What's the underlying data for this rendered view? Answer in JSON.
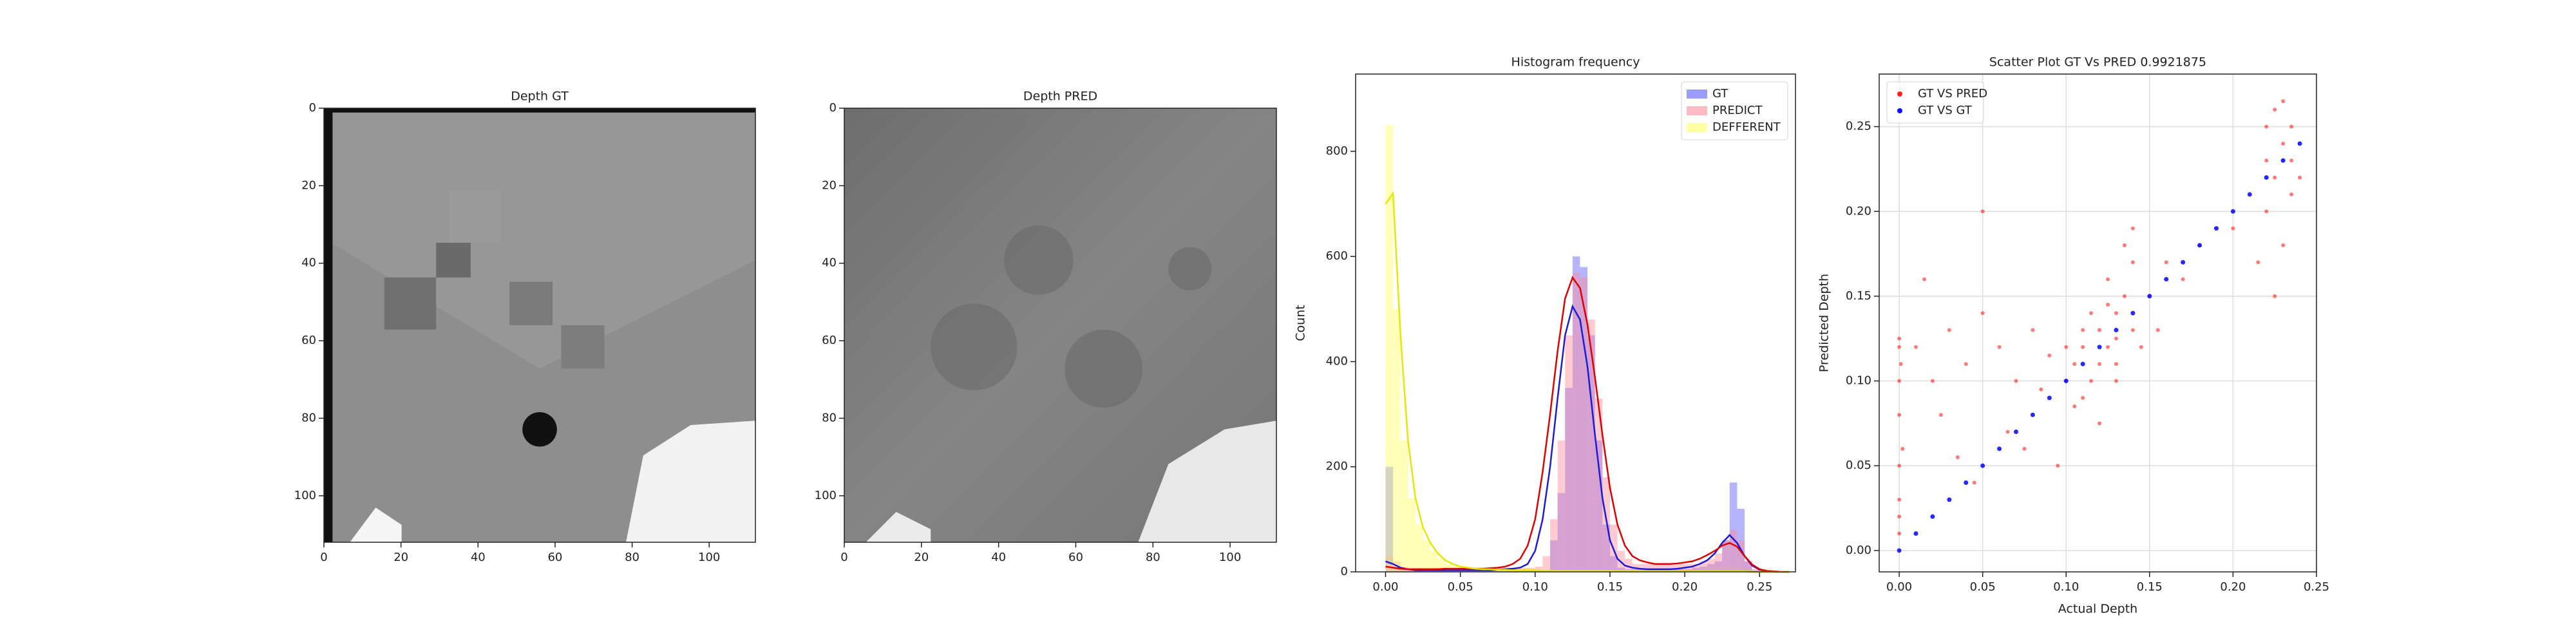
{
  "chart_data": [
    {
      "type": "image",
      "title": "Depth GT",
      "xlim": [
        0,
        112
      ],
      "ylim": [
        112,
        0
      ],
      "xticks": [
        0,
        20,
        40,
        60,
        80,
        100
      ],
      "yticks": [
        0,
        20,
        40,
        60,
        80,
        100
      ]
    },
    {
      "type": "image",
      "title": "Depth PRED",
      "xlim": [
        0,
        112
      ],
      "ylim": [
        112,
        0
      ],
      "xticks": [
        0,
        20,
        40,
        60,
        80,
        100
      ],
      "yticks": [
        0,
        20,
        40,
        60,
        80,
        100
      ]
    },
    {
      "type": "histogram",
      "title": "Histogram frequency",
      "y_label": "Count",
      "legend": "upper right",
      "xlim": [
        -0.02,
        0.274
      ],
      "ylim": [
        0,
        947
      ],
      "xticks": [
        {
          "value": 0,
          "label": "0.00"
        },
        {
          "value": 0.05,
          "label": "0.05"
        },
        {
          "value": 0.1,
          "label": "0.10"
        },
        {
          "value": 0.15,
          "label": "0.15"
        },
        {
          "value": 0.2,
          "label": "0.20"
        },
        {
          "value": 0.25,
          "label": "0.25"
        }
      ],
      "yticks": [
        0,
        200,
        400,
        600,
        800
      ],
      "bins": [
        0,
        0.005,
        0.01,
        0.015,
        0.02,
        0.025,
        0.03,
        0.035,
        0.04,
        0.045,
        0.05,
        0.055,
        0.06,
        0.065,
        0.07,
        0.075,
        0.08,
        0.085,
        0.09,
        0.095,
        0.1,
        0.105,
        0.11,
        0.115,
        0.12,
        0.125,
        0.13,
        0.135,
        0.14,
        0.145,
        0.15,
        0.155,
        0.16,
        0.165,
        0.17,
        0.175,
        0.18,
        0.185,
        0.19,
        0.195,
        0.2,
        0.205,
        0.21,
        0.215,
        0.22,
        0.225,
        0.23,
        0.235,
        0.24,
        0.245,
        0.25,
        0.255,
        0.26,
        0.265,
        0.27
      ],
      "series": [
        {
          "name": "GT",
          "color": "#5a5aff",
          "kde_color": "#1c1cd6",
          "values": [
            200,
            10,
            3,
            2,
            2,
            2,
            2,
            2,
            2,
            2,
            2,
            2,
            2,
            2,
            2,
            2,
            2,
            2,
            2,
            2,
            2,
            3,
            60,
            150,
            350,
            600,
            580,
            450,
            250,
            90,
            30,
            8,
            5,
            5,
            5,
            5,
            5,
            5,
            5,
            5,
            5,
            8,
            10,
            15,
            20,
            60,
            170,
            120,
            20,
            3,
            0,
            0,
            0,
            0
          ],
          "kde": [
            20,
            15,
            8,
            5,
            3,
            3,
            3,
            3,
            3,
            3,
            3,
            3,
            3,
            3,
            3,
            4,
            5,
            6,
            8,
            15,
            40,
            100,
            200,
            330,
            450,
            505,
            480,
            390,
            260,
            140,
            60,
            25,
            12,
            8,
            6,
            5,
            5,
            5,
            5,
            6,
            8,
            10,
            15,
            22,
            35,
            55,
            70,
            55,
            30,
            12,
            4,
            1,
            0,
            0,
            0
          ]
        },
        {
          "name": "PREDICT",
          "color": "#ff8c9c",
          "kde_color": "#e00000",
          "values": [
            30,
            20,
            10,
            8,
            8,
            8,
            8,
            8,
            8,
            8,
            8,
            8,
            8,
            8,
            8,
            8,
            8,
            8,
            8,
            8,
            10,
            30,
            100,
            250,
            450,
            570,
            560,
            480,
            330,
            180,
            90,
            40,
            25,
            15,
            15,
            15,
            15,
            15,
            15,
            15,
            15,
            15,
            20,
            25,
            35,
            60,
            80,
            60,
            20,
            5,
            0,
            0,
            0,
            0
          ],
          "kde": [
            10,
            8,
            6,
            5,
            5,
            5,
            5,
            5,
            6,
            6,
            6,
            6,
            6,
            6,
            7,
            8,
            10,
            15,
            25,
            50,
            100,
            190,
            300,
            420,
            520,
            560,
            540,
            470,
            370,
            260,
            160,
            90,
            50,
            30,
            22,
            18,
            15,
            15,
            15,
            16,
            18,
            20,
            25,
            32,
            40,
            50,
            55,
            48,
            30,
            14,
            5,
            2,
            1,
            0,
            0
          ]
        },
        {
          "name": "DEFFERENT",
          "color": "#ffff66",
          "kde_color": "#e6e600",
          "values": [
            850,
            500,
            250,
            140,
            90,
            60,
            40,
            25,
            15,
            10,
            5,
            5,
            5,
            5,
            5,
            4,
            4,
            3,
            3,
            3,
            3,
            2,
            2,
            2,
            2,
            2,
            2,
            2,
            2,
            2,
            2,
            2,
            2,
            2,
            1,
            1,
            1,
            1,
            1,
            1,
            1,
            1,
            1,
            1,
            1,
            1,
            1,
            1,
            0,
            0,
            0,
            0,
            0,
            0
          ],
          "kde": [
            700,
            720,
            450,
            250,
            140,
            85,
            55,
            35,
            22,
            15,
            10,
            8,
            6,
            5,
            5,
            4,
            4,
            3,
            3,
            3,
            3,
            2,
            2,
            2,
            2,
            2,
            2,
            2,
            2,
            2,
            2,
            2,
            2,
            2,
            2,
            1,
            1,
            1,
            1,
            1,
            1,
            1,
            1,
            1,
            1,
            1,
            1,
            1,
            1,
            0,
            0,
            0,
            0,
            0,
            0
          ]
        }
      ]
    },
    {
      "type": "scatter",
      "title": "Scatter Plot GT Vs PRED 0.9921875",
      "x_label": "Actual Depth",
      "y_label": "Predicted Depth",
      "legend": "upper left",
      "grid": true,
      "xlim": [
        -0.012,
        0.25
      ],
      "ylim": [
        -0.0126,
        0.281
      ],
      "xticks": [
        {
          "value": 0,
          "label": "0.00"
        },
        {
          "value": 0.05,
          "label": "0.05"
        },
        {
          "value": 0.1,
          "label": "0.10"
        },
        {
          "value": 0.15,
          "label": "0.15"
        },
        {
          "value": 0.2,
          "label": "0.20"
        },
        {
          "value": 0.25,
          "label": "0.25"
        }
      ],
      "yticks": [
        {
          "value": 0,
          "label": "0.00"
        },
        {
          "value": 0.05,
          "label": "0.05"
        },
        {
          "value": 0.1,
          "label": "0.10"
        },
        {
          "value": 0.15,
          "label": "0.15"
        },
        {
          "value": 0.2,
          "label": "0.20"
        },
        {
          "value": 0.25,
          "label": "0.25"
        }
      ],
      "series": [
        {
          "name": "GT VS PRED",
          "color": "#ff2020",
          "x": [
            0,
            0,
            0,
            0,
            0,
            0,
            0,
            0,
            0.002,
            0.001,
            0.01,
            0.02,
            0.03,
            0.04,
            0.05,
            0.06,
            0.07,
            0.08,
            0.09,
            0.025,
            0.045,
            0.065,
            0.085,
            0.015,
            0.05,
            0.035,
            0.075,
            0.095,
            0.1,
            0.105,
            0.11,
            0.115,
            0.12,
            0.125,
            0.13,
            0.135,
            0.14,
            0.11,
            0.12,
            0.13,
            0.125,
            0.135,
            0.14,
            0.145,
            0.115,
            0.105,
            0.12,
            0.13,
            0.14,
            0.15,
            0.16,
            0.17,
            0.18,
            0.155,
            0.125,
            0.11,
            0.1,
            0.13,
            0.22,
            0.225,
            0.23,
            0.235,
            0.22,
            0.225,
            0.23,
            0.235,
            0.215,
            0.225,
            0.23,
            0.235,
            0.24,
            0.22,
            0.2
          ],
          "values": [
            0.01,
            0.03,
            0.05,
            0.08,
            0.1,
            0.12,
            0.02,
            0.125,
            0.06,
            0.11,
            0.12,
            0.1,
            0.13,
            0.11,
            0.14,
            0.12,
            0.1,
            0.13,
            0.115,
            0.08,
            0.04,
            0.07,
            0.095,
            0.16,
            0.2,
            0.055,
            0.06,
            0.05,
            0.1,
            0.11,
            0.12,
            0.1,
            0.13,
            0.12,
            0.14,
            0.15,
            0.13,
            0.09,
            0.11,
            0.125,
            0.16,
            0.18,
            0.17,
            0.12,
            0.14,
            0.085,
            0.075,
            0.1,
            0.19,
            0.15,
            0.17,
            0.16,
            0.18,
            0.13,
            0.145,
            0.13,
            0.12,
            0.11,
            0.25,
            0.26,
            0.24,
            0.25,
            0.2,
            0.22,
            0.18,
            0.21,
            0.17,
            0.15,
            0.265,
            0.23,
            0.22,
            0.23,
            0.19
          ]
        },
        {
          "name": "GT VS GT",
          "color": "#1010ff",
          "x": [
            0,
            0.01,
            0.02,
            0.03,
            0.04,
            0.05,
            0.06,
            0.07,
            0.08,
            0.09,
            0.1,
            0.11,
            0.12,
            0.13,
            0.14,
            0.15,
            0.16,
            0.17,
            0.18,
            0.19,
            0.2,
            0.21,
            0.22,
            0.23,
            0.24
          ],
          "values": [
            0,
            0.01,
            0.02,
            0.03,
            0.04,
            0.05,
            0.06,
            0.07,
            0.08,
            0.09,
            0.1,
            0.11,
            0.12,
            0.13,
            0.14,
            0.15,
            0.16,
            0.17,
            0.18,
            0.19,
            0.2,
            0.21,
            0.22,
            0.23,
            0.24
          ]
        }
      ]
    }
  ]
}
